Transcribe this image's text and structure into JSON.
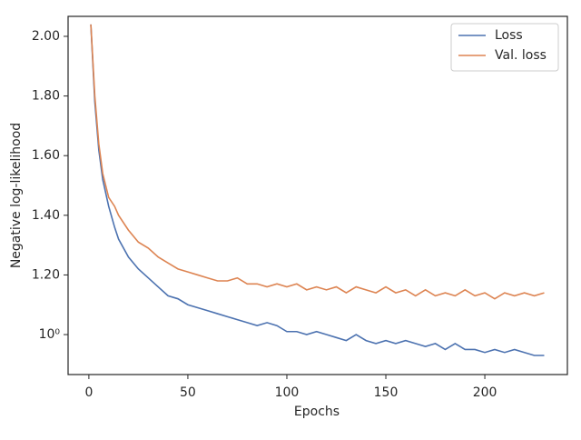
{
  "chart_data": {
    "type": "line",
    "xlabel": "Epochs",
    "ylabel": "Negative log-likelihood",
    "x": [
      1,
      3,
      5,
      7,
      10,
      13,
      15,
      20,
      25,
      30,
      35,
      40,
      45,
      50,
      55,
      60,
      65,
      70,
      75,
      80,
      85,
      90,
      95,
      100,
      105,
      110,
      115,
      120,
      125,
      130,
      135,
      140,
      145,
      150,
      155,
      160,
      165,
      170,
      175,
      180,
      185,
      190,
      195,
      200,
      205,
      210,
      215,
      220,
      225,
      230
    ],
    "series": [
      {
        "name": "Loss",
        "color": "#4c72b0",
        "values": [
          2.04,
          1.78,
          1.62,
          1.52,
          1.43,
          1.36,
          1.32,
          1.26,
          1.22,
          1.19,
          1.16,
          1.13,
          1.12,
          1.1,
          1.09,
          1.08,
          1.07,
          1.06,
          1.05,
          1.04,
          1.03,
          1.04,
          1.03,
          1.01,
          1.01,
          1.0,
          1.01,
          1.0,
          0.99,
          0.98,
          1.0,
          0.98,
          0.97,
          0.98,
          0.97,
          0.98,
          0.97,
          0.96,
          0.97,
          0.95,
          0.97,
          0.95,
          0.95,
          0.94,
          0.95,
          0.94,
          0.95,
          0.94,
          0.93,
          0.93
        ]
      },
      {
        "name": "Val. loss",
        "color": "#dd8452",
        "values": [
          2.04,
          1.8,
          1.64,
          1.54,
          1.46,
          1.43,
          1.4,
          1.35,
          1.31,
          1.29,
          1.26,
          1.24,
          1.22,
          1.21,
          1.2,
          1.19,
          1.18,
          1.18,
          1.19,
          1.17,
          1.17,
          1.16,
          1.17,
          1.16,
          1.17,
          1.15,
          1.16,
          1.15,
          1.16,
          1.14,
          1.16,
          1.15,
          1.14,
          1.16,
          1.14,
          1.15,
          1.13,
          1.15,
          1.13,
          1.14,
          1.13,
          1.15,
          1.13,
          1.14,
          1.12,
          1.14,
          1.13,
          1.14,
          1.13,
          1.14
        ]
      }
    ],
    "xlim": [
      -10.5,
      241.7
    ],
    "ylim": [
      0.866,
      2.067
    ],
    "xticks": [
      0,
      50,
      100,
      150,
      200
    ],
    "yticks": [
      {
        "value": 1.0,
        "label": "10⁰"
      },
      {
        "value": 1.2,
        "label": "1.20"
      },
      {
        "value": 1.4,
        "label": "1.40"
      },
      {
        "value": 1.6,
        "label": "1.60"
      },
      {
        "value": 1.8,
        "label": "1.80"
      },
      {
        "value": 2.0,
        "label": "2.00"
      }
    ],
    "legend": "upper right"
  }
}
